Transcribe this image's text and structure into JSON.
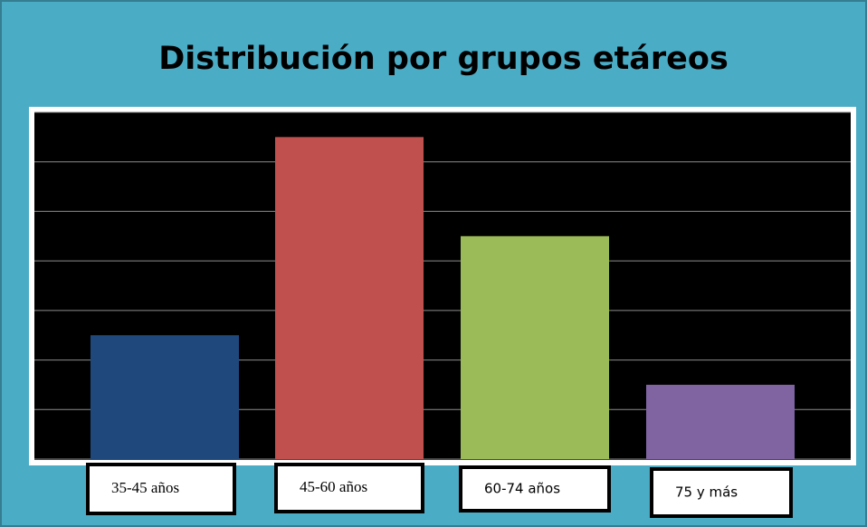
{
  "chart_data": {
    "type": "bar",
    "title": "Distribución por grupos etáreos",
    "categories": [
      "35-45 años",
      "45-60 años",
      "60-74 años",
      "75 y más"
    ],
    "values": [
      2.5,
      6.5,
      4.5,
      1.5
    ],
    "colors": [
      "#1f497d",
      "#c0504d",
      "#9bbb59",
      "#8064a2"
    ],
    "ylim": [
      0,
      7
    ],
    "yticks": [
      0,
      1,
      2,
      3,
      4,
      5,
      6,
      7
    ],
    "grid": true
  }
}
